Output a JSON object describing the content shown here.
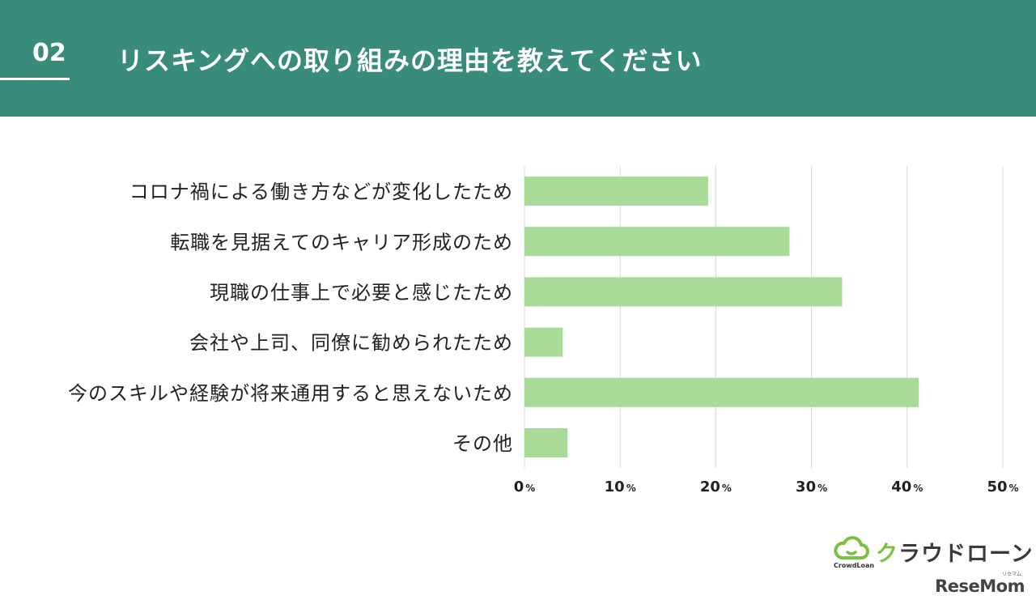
{
  "header": {
    "number": "02",
    "title": "リスキングへの取り組みの理由を教えてください"
  },
  "chart_data": {
    "type": "bar",
    "orientation": "horizontal",
    "categories": [
      "コロナ禍による働き方などが変化したため",
      "転職を見据えてのキャリア形成のため",
      "現職の仕事上で必要と感じたため",
      "会社や上司、同僚に勧められたため",
      "今のスキルや経験が将来通用すると思えないため",
      "その他"
    ],
    "values": [
      19.2,
      27.7,
      33.2,
      4.0,
      41.2,
      4.5
    ],
    "xlim": [
      0,
      50
    ],
    "ticks": [
      {
        "num": "0",
        "unit": "%"
      },
      {
        "num": "10",
        "unit": "%"
      },
      {
        "num": "20",
        "unit": "%"
      },
      {
        "num": "30",
        "unit": "%"
      },
      {
        "num": "40",
        "unit": "%"
      },
      {
        "num": "50",
        "unit": "%"
      }
    ],
    "grid": true,
    "bar_color": "#a8da98",
    "grid_color": "#d9d9d9"
  },
  "logo": {
    "name": "クラウドローン",
    "sub": "CrowdLoan",
    "accent_color": "#7ac043"
  },
  "watermark": {
    "text": "ReseMom",
    "sub": "リセマム"
  }
}
